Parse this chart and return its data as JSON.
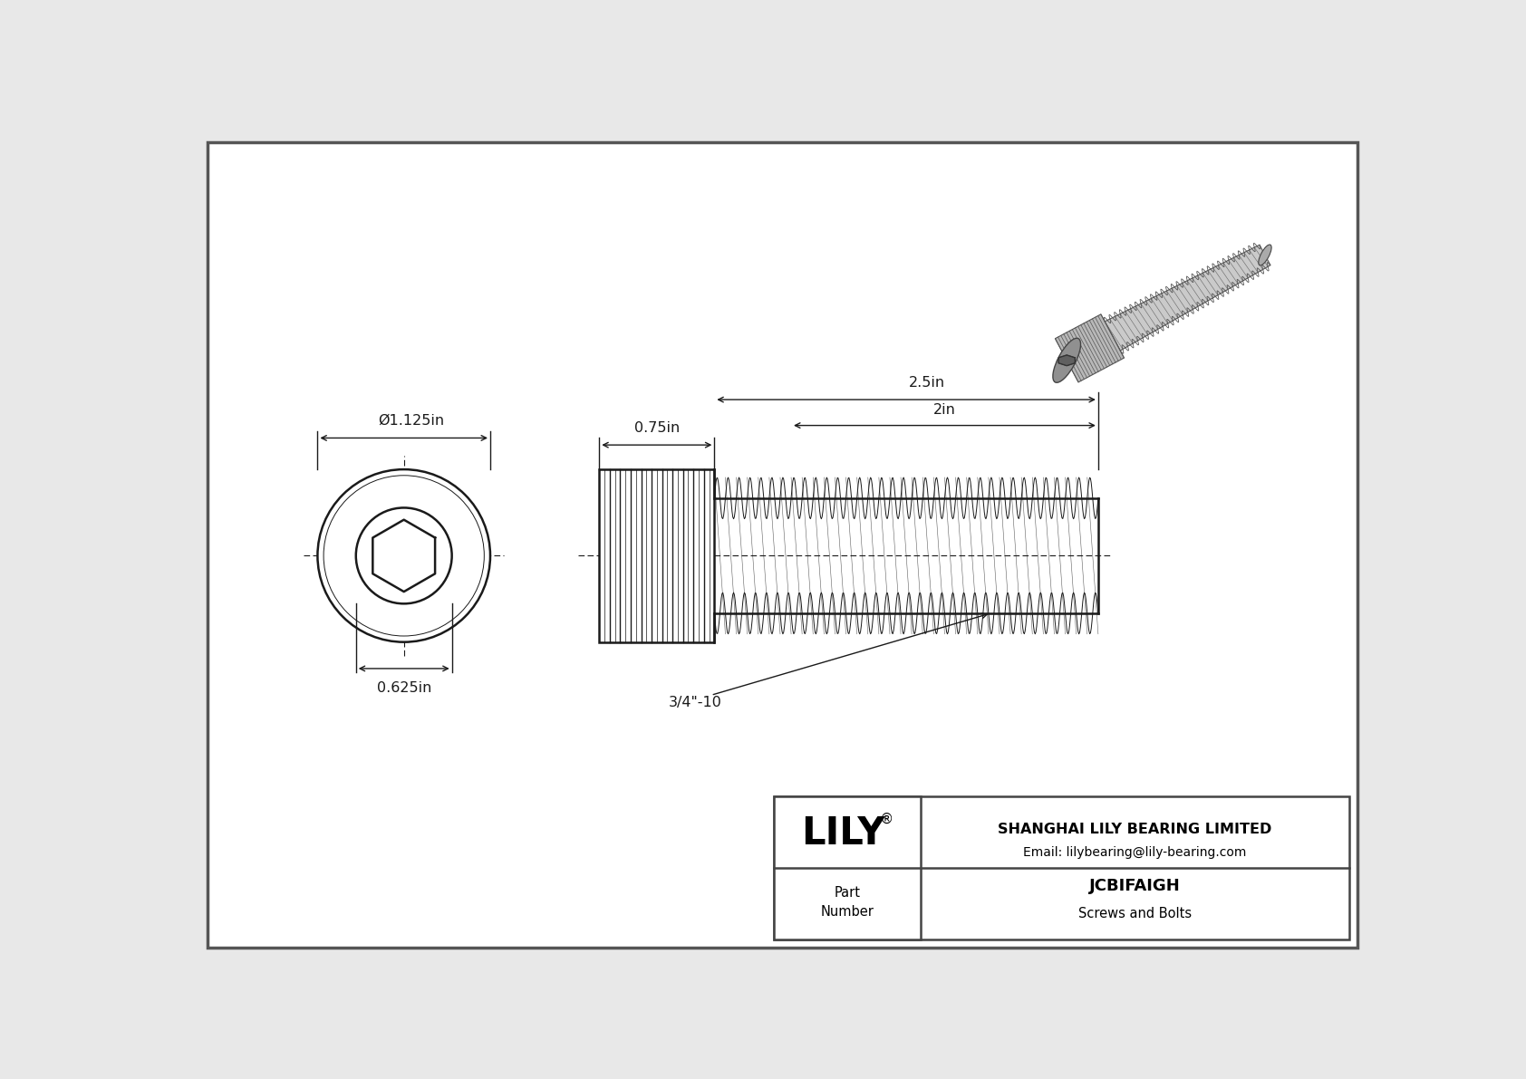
{
  "bg_color": "#f0f0f0",
  "border_color": "#333333",
  "line_color": "#1a1a1a",
  "dim_color": "#1a1a1a",
  "title": "JCBIFAIGH",
  "subtitle": "Screws and Bolts",
  "company": "SHANGHAI LILY BEARING LIMITED",
  "email": "Email: lilybearing@lily-bearing.com",
  "part_label": "Part\nNumber",
  "brand": "LILY",
  "dim_diameter": "Ø1.125in",
  "dim_inner": "0.625in",
  "dim_head_width": "0.75in",
  "dim_thread_length": "2.5in",
  "dim_body_length": "2in",
  "dim_thread_spec": "3/4\"-10"
}
